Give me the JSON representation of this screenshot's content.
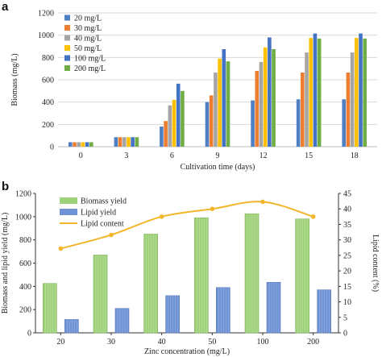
{
  "chart_data": [
    {
      "panel": "a",
      "type": "bar",
      "ylabel": "Biomass (mg/L)",
      "xlabel": "Cultivation time (days)",
      "ylim": [
        0,
        1200
      ],
      "yticks": [
        0,
        200,
        400,
        600,
        800,
        1000,
        1200
      ],
      "grid": true,
      "legend": "top-left",
      "categories": [
        "0",
        "3",
        "6",
        "9",
        "12",
        "15",
        "18"
      ],
      "series": [
        {
          "name": "20 mg/L",
          "color": "#4e7fc3",
          "values": [
            40,
            85,
            180,
            400,
            415,
            425,
            425
          ]
        },
        {
          "name": "30 mg/L",
          "color": "#ed7d31",
          "values": [
            40,
            85,
            230,
            460,
            680,
            665,
            665
          ]
        },
        {
          "name": "40 mg/L",
          "color": "#a5a5a5",
          "values": [
            40,
            85,
            370,
            665,
            760,
            845,
            845
          ]
        },
        {
          "name": "50 mg/L",
          "color": "#ffc000",
          "values": [
            40,
            85,
            420,
            790,
            890,
            975,
            975
          ]
        },
        {
          "name": "100 mg/L",
          "color": "#4472c4",
          "values": [
            40,
            85,
            565,
            875,
            980,
            1015,
            1015
          ]
        },
        {
          "name": "200 mg/L",
          "color": "#70ad47",
          "values": [
            40,
            85,
            500,
            765,
            875,
            970,
            970
          ]
        }
      ]
    },
    {
      "panel": "b",
      "type": "bar",
      "ylabel": "Biomass and lipid yield (mg/L)",
      "y2label": "Lipid content (%)",
      "xlabel": "Zinc concentration (mg/L)",
      "ylim": [
        0,
        1200
      ],
      "yticks": [
        0,
        200,
        400,
        600,
        800,
        1000,
        1200
      ],
      "y2lim": [
        0,
        45
      ],
      "y2ticks": [
        0,
        5,
        10,
        15,
        20,
        25,
        30,
        35,
        40,
        45
      ],
      "grid": false,
      "legend": "top-left",
      "categories": [
        "20",
        "30",
        "40",
        "50",
        "100",
        "200"
      ],
      "series": [
        {
          "name": "Biomass yield",
          "color": "#9fd07a",
          "values": [
            425,
            670,
            850,
            990,
            1025,
            980
          ]
        },
        {
          "name": "Lipid yield",
          "color": "#6f93d4",
          "values": [
            115,
            210,
            320,
            390,
            435,
            370
          ]
        },
        {
          "name": "Lipid content",
          "color": "#f3b62b",
          "type": "line",
          "axis": "right",
          "values": [
            27.2,
            31.6,
            37.5,
            40.0,
            42.3,
            37.5
          ]
        }
      ]
    }
  ]
}
